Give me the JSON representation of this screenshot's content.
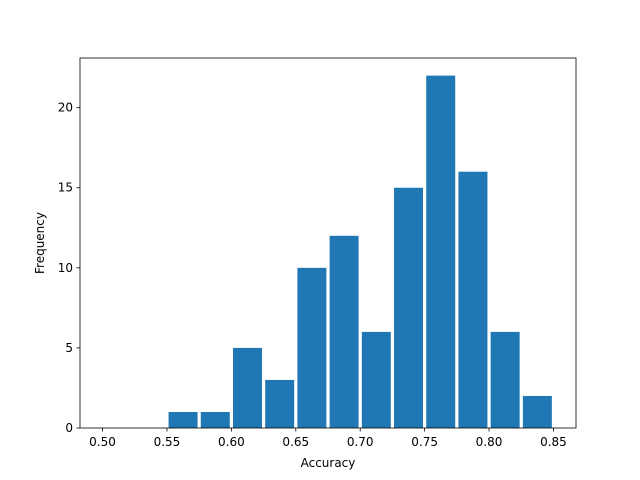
{
  "chart_data": {
    "type": "bar",
    "title": "",
    "xlabel": "Accuracy",
    "ylabel": "Frequency",
    "xlim": [
      0.4825,
      0.8675
    ],
    "ylim": [
      0,
      23.1
    ],
    "bar_width": 0.0225,
    "bar_color": "#1f77b4",
    "grid": false,
    "x": [
      0.5125,
      0.5375,
      0.5625,
      0.5875,
      0.6125,
      0.6375,
      0.6625,
      0.6875,
      0.7125,
      0.7375,
      0.7625,
      0.7875,
      0.8125,
      0.8375
    ],
    "values": [
      0,
      0,
      1,
      1,
      5,
      3,
      10,
      12,
      6,
      15,
      22,
      16,
      6,
      2
    ],
    "xticks": [
      0.5,
      0.55,
      0.6,
      0.65,
      0.7,
      0.75,
      0.8,
      0.85
    ],
    "xtick_labels": [
      "0.50",
      "0.55",
      "0.60",
      "0.65",
      "0.70",
      "0.75",
      "0.80",
      "0.85"
    ],
    "yticks": [
      0,
      5,
      10,
      15,
      20
    ],
    "ytick_labels": [
      "0",
      "5",
      "10",
      "15",
      "20"
    ]
  }
}
